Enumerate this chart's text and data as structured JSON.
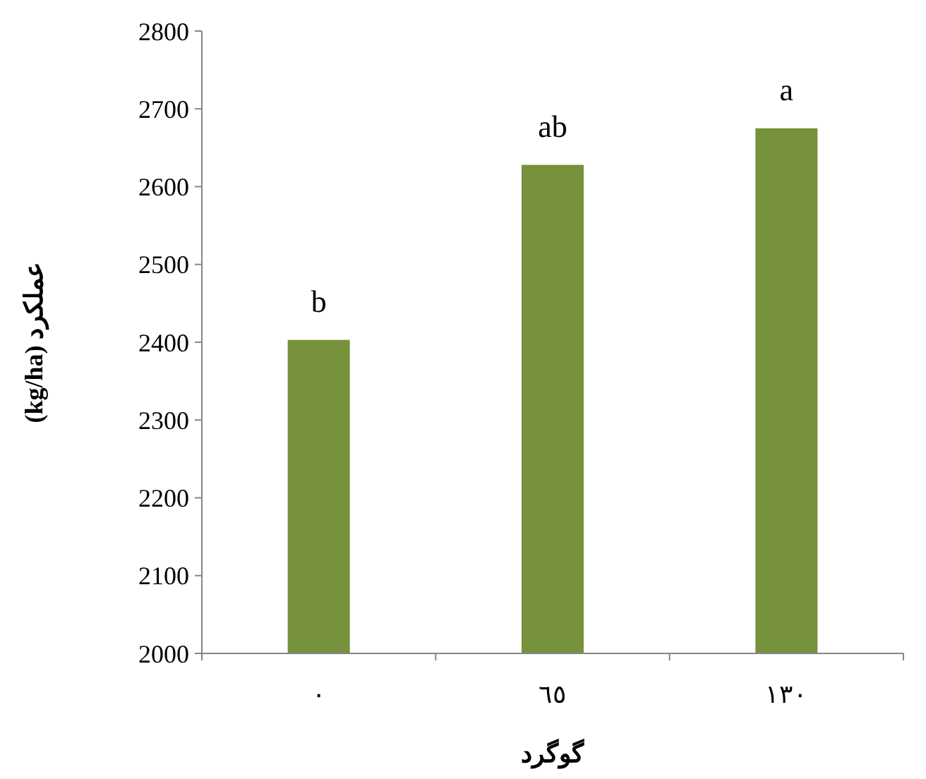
{
  "chart_data": {
    "type": "bar",
    "xlabel": "گوگرد",
    "ylabel": "(kg/ha) عملکرد",
    "categories": [
      "٠",
      "٦٥",
      "١٣٠"
    ],
    "values": [
      2403,
      2628,
      2675
    ],
    "color": "#76923c",
    "ylim": [
      2000,
      2800
    ],
    "yticks": [
      2000,
      2100,
      2200,
      2300,
      2400,
      2500,
      2600,
      2700,
      2800
    ],
    "grid": false,
    "annotations": [
      {
        "text": "b",
        "x": "٠",
        "y": 2403
      },
      {
        "text": "ab",
        "x": "٦٥",
        "y": 2628
      },
      {
        "text": "a",
        "x": "١٣٠",
        "y": 2675
      }
    ]
  }
}
